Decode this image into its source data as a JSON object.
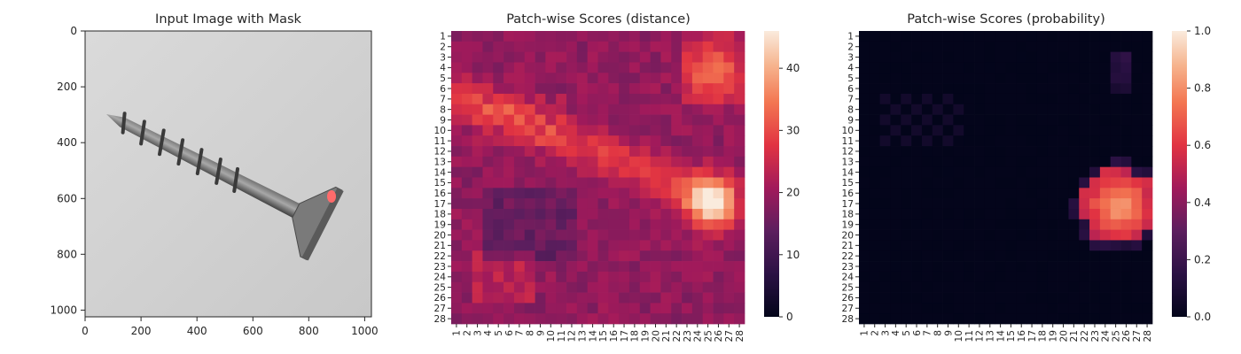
{
  "chart_data": [
    {
      "type": "image",
      "title": "Input Image with Mask",
      "xlim": [
        0,
        1024
      ],
      "ylim": [
        1024,
        0
      ],
      "xticks": [
        "0",
        "200",
        "400",
        "600",
        "800",
        "1000"
      ],
      "yticks": [
        "0",
        "200",
        "400",
        "600",
        "800",
        "1000"
      ],
      "image": {
        "content": "grayscale photo of a metal screw, tip at upper-left, countersunk head at lower-right",
        "background_color": "#cfcfcf",
        "mask_color": "#ff6b6b",
        "mask_center": [
          880,
          600
        ]
      }
    },
    {
      "type": "heatmap",
      "title": "Patch-wise Scores (distance)",
      "xlabels": [
        "1",
        "2",
        "3",
        "4",
        "5",
        "6",
        "7",
        "8",
        "9",
        "10",
        "11",
        "12",
        "13",
        "14",
        "15",
        "16",
        "17",
        "18",
        "19",
        "20",
        "21",
        "22",
        "23",
        "24",
        "25",
        "26",
        "27",
        "28"
      ],
      "ylabels": [
        "1",
        "2",
        "3",
        "4",
        "5",
        "6",
        "7",
        "8",
        "9",
        "10",
        "11",
        "12",
        "13",
        "14",
        "15",
        "16",
        "17",
        "18",
        "19",
        "20",
        "21",
        "22",
        "23",
        "24",
        "25",
        "26",
        "27",
        "28"
      ],
      "colorbar": {
        "ticks": [
          "0",
          "10",
          "20",
          "30",
          "40"
        ],
        "range": [
          0,
          46
        ]
      },
      "colormap": "rocket",
      "value_range": [
        0,
        46
      ]
    },
    {
      "type": "heatmap",
      "title": "Patch-wise Scores (probability)",
      "xlabels": [
        "1",
        "2",
        "3",
        "4",
        "5",
        "6",
        "7",
        "8",
        "9",
        "10",
        "11",
        "12",
        "13",
        "14",
        "15",
        "16",
        "17",
        "18",
        "19",
        "20",
        "21",
        "22",
        "23",
        "24",
        "25",
        "26",
        "27",
        "28"
      ],
      "ylabels": [
        "1",
        "2",
        "3",
        "4",
        "5",
        "6",
        "7",
        "8",
        "9",
        "10",
        "11",
        "12",
        "13",
        "14",
        "15",
        "16",
        "17",
        "18",
        "19",
        "20",
        "21",
        "22",
        "23",
        "24",
        "25",
        "26",
        "27",
        "28"
      ],
      "colorbar": {
        "ticks": [
          "0.0",
          "0.2",
          "0.4",
          "0.6",
          "0.8",
          "1.0"
        ],
        "range": [
          0,
          1
        ]
      },
      "colormap": "rocket",
      "value_range": [
        0,
        1
      ]
    }
  ]
}
